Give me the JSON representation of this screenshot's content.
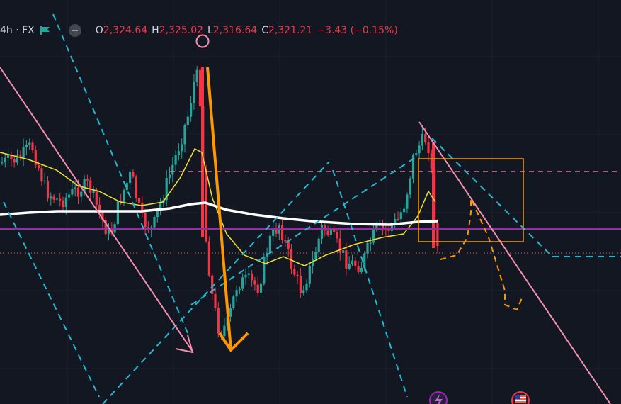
{
  "header": {
    "symbol": "4h · FX",
    "open_key": "O",
    "open": "2,324.64",
    "high_key": "H",
    "high": "2,325.02",
    "low_key": "L",
    "low": "2,316.64",
    "close_key": "C",
    "close": "2,321.21",
    "change": "−3.43 (−0.15%)",
    "flag_icon": "flag-icon",
    "eye_icon": "visibility-toggle-icon"
  },
  "colors": {
    "background": "#131722",
    "bull": "#26a69a",
    "bear": "#f23645",
    "ma_fast": "#f0e02f",
    "ma_slow": "#ffffff",
    "purple_level": "#9c27b0",
    "pink_level": "#f48fb1",
    "cyan_channel": "#22b8cf",
    "orange_arrow": "#ff9800",
    "orange_box": "#ff9800",
    "pink_trend": "#f48fb1"
  },
  "markers": {
    "lightning_icon": "lightning-icon",
    "us_flag_icon": "us-flag-icon",
    "circle_marker_icon": "circle-marker-icon"
  },
  "chart_data": {
    "type": "candlestick",
    "title": "",
    "xlabel": "",
    "ylabel": "",
    "grid": true,
    "last_candle": {
      "open": 2324.64,
      "high": 2325.02,
      "low": 2316.64,
      "close": 2321.21
    },
    "levels": [
      {
        "name": "",
        "style": "solid",
        "color": "#9c27b0"
      },
      {
        "name": "",
        "style": "dashed",
        "color": "#f48fb1"
      }
    ]
  }
}
